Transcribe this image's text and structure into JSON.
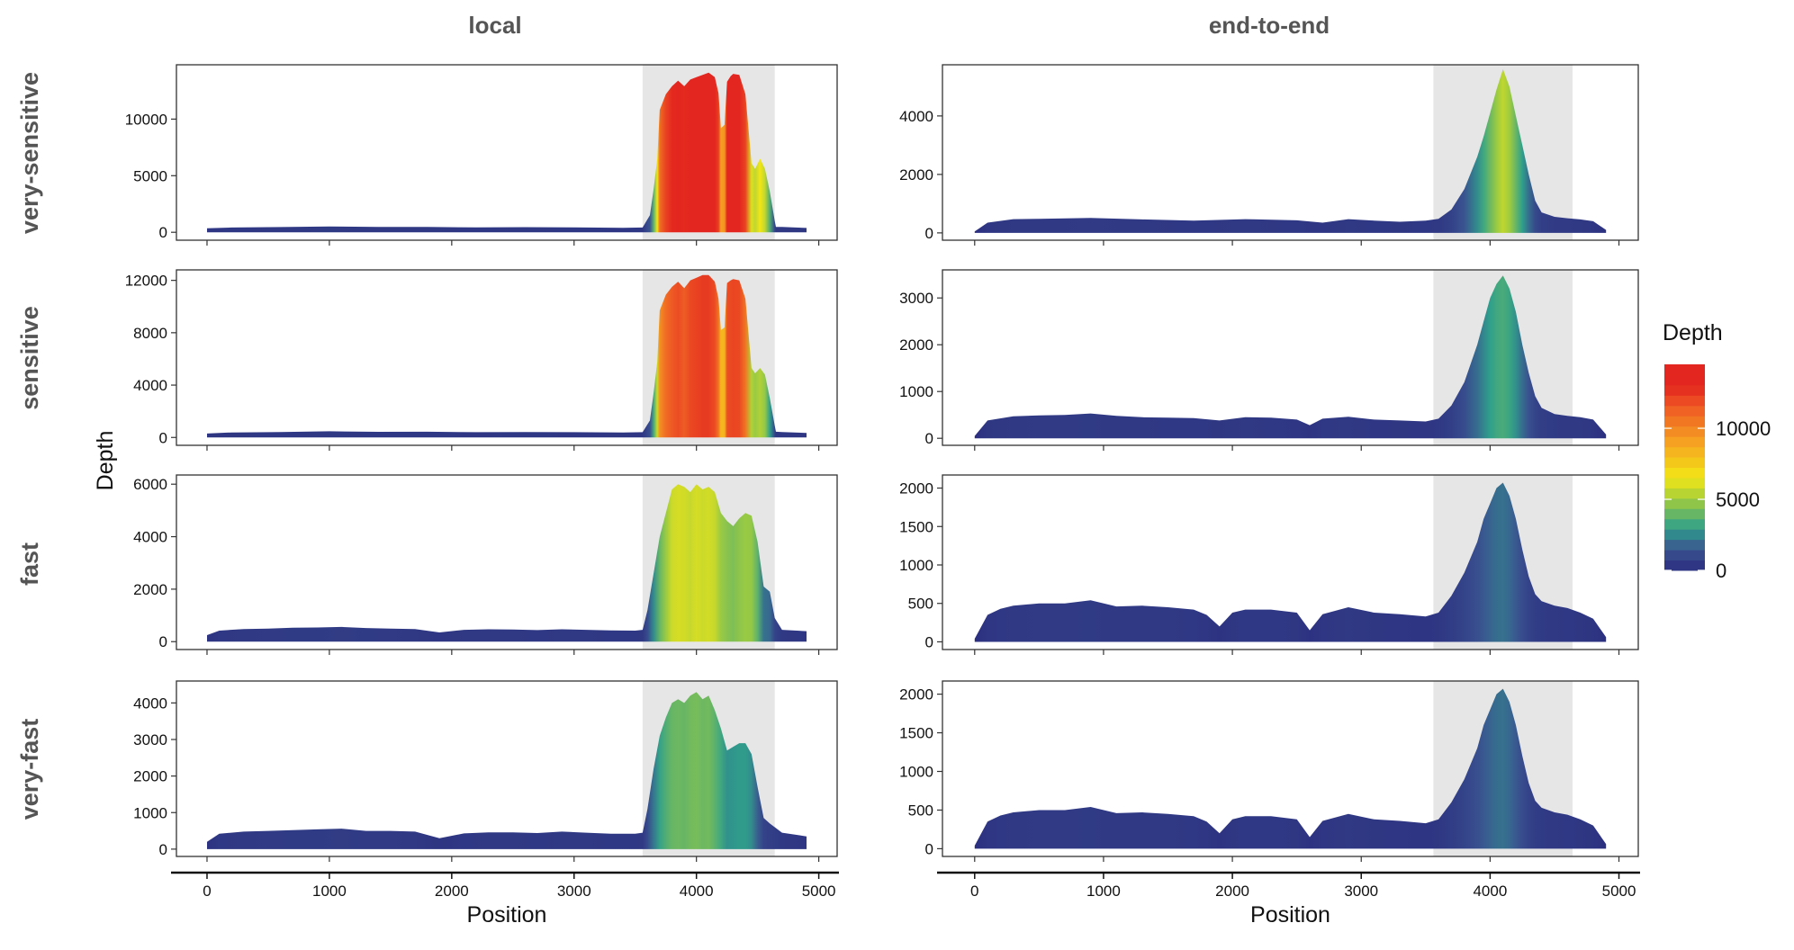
{
  "chart_data": {
    "type": "area",
    "columns": [
      "local",
      "end-to-end"
    ],
    "rows": [
      "very-sensitive",
      "sensitive",
      "fast",
      "very-fast"
    ],
    "xlabel": "Position",
    "ylabel": "Depth",
    "x_ticks": [
      0,
      1000,
      2000,
      3000,
      4000,
      5000
    ],
    "xlim": [
      -250,
      5150
    ],
    "highlight_region": [
      3560,
      4640
    ],
    "legend": {
      "title": "Depth",
      "labels": [
        {
          "value": 10000,
          "text": "10000"
        },
        {
          "value": 5000,
          "text": "5000"
        },
        {
          "value": 0,
          "text": "0"
        }
      ],
      "color_stops": [
        {
          "value": 0,
          "color": "#2b2d7f"
        },
        {
          "value": 1500,
          "color": "#3a5490"
        },
        {
          "value": 3000,
          "color": "#2fa08b"
        },
        {
          "value": 5000,
          "color": "#9fcc3f"
        },
        {
          "value": 6500,
          "color": "#f2e616"
        },
        {
          "value": 9000,
          "color": "#f6a322"
        },
        {
          "value": 11500,
          "color": "#ee5a24"
        },
        {
          "value": 13000,
          "color": "#e3261f"
        },
        {
          "value": 14500,
          "color": "#e3261f"
        }
      ]
    },
    "panels": [
      {
        "row": "very-sensitive",
        "col": "local",
        "ylim": [
          -700,
          14800
        ],
        "yticks": [
          0,
          5000,
          10000
        ],
        "x": [
          0,
          200,
          600,
          1000,
          1400,
          1800,
          2200,
          2600,
          3000,
          3400,
          3560,
          3620,
          3650,
          3680,
          3700,
          3750,
          3800,
          3850,
          3900,
          3950,
          4000,
          4050,
          4100,
          4150,
          4180,
          4200,
          4230,
          4250,
          4280,
          4300,
          4350,
          4400,
          4450,
          4480,
          4520,
          4560,
          4600,
          4640,
          4650,
          4700,
          4900
        ],
        "y": [
          350,
          420,
          460,
          520,
          470,
          480,
          430,
          450,
          430,
          400,
          420,
          1500,
          3800,
          6500,
          10800,
          12200,
          12900,
          13400,
          12900,
          13500,
          13700,
          13900,
          14100,
          13700,
          12300,
          9200,
          9500,
          13300,
          13800,
          14000,
          13900,
          12200,
          6100,
          5600,
          6500,
          5600,
          3600,
          1000,
          480,
          470,
          380
        ]
      },
      {
        "row": "very-sensitive",
        "col": "end-to-end",
        "ylim": [
          -250,
          5750
        ],
        "yticks": [
          0,
          2000,
          4000
        ],
        "x": [
          0,
          100,
          300,
          500,
          900,
          1300,
          1700,
          2100,
          2500,
          2700,
          2900,
          3100,
          3300,
          3500,
          3600,
          3700,
          3800,
          3900,
          3950,
          4000,
          4050,
          4100,
          4150,
          4200,
          4250,
          4300,
          4350,
          4400,
          4500,
          4600,
          4700,
          4800,
          4900
        ],
        "y": [
          50,
          350,
          470,
          480,
          510,
          460,
          420,
          470,
          430,
          350,
          470,
          420,
          380,
          420,
          480,
          800,
          1500,
          2600,
          3300,
          4100,
          4900,
          5600,
          5000,
          4000,
          3000,
          2000,
          1100,
          700,
          550,
          500,
          460,
          400,
          100
        ]
      },
      {
        "row": "sensitive",
        "col": "local",
        "ylim": [
          -600,
          12800
        ],
        "yticks": [
          0,
          4000,
          8000,
          12000
        ],
        "x": [
          0,
          200,
          600,
          1000,
          1400,
          1800,
          2200,
          2600,
          3000,
          3400,
          3560,
          3620,
          3650,
          3680,
          3700,
          3750,
          3800,
          3850,
          3900,
          3950,
          4000,
          4050,
          4100,
          4150,
          4180,
          4200,
          4230,
          4250,
          4280,
          4300,
          4350,
          4400,
          4450,
          4480,
          4520,
          4560,
          4600,
          4640,
          4650,
          4700,
          4900
        ],
        "y": [
          300,
          380,
          420,
          470,
          430,
          440,
          400,
          420,
          400,
          380,
          400,
          1300,
          3400,
          5800,
          9700,
          10900,
          11500,
          11900,
          11400,
          12000,
          12200,
          12400,
          12400,
          11900,
          10600,
          8200,
          8400,
          11800,
          12000,
          12100,
          12000,
          10600,
          5300,
          4900,
          5300,
          4800,
          3000,
          900,
          440,
          420,
          350
        ]
      },
      {
        "row": "sensitive",
        "col": "end-to-end",
        "ylim": [
          -150,
          3600
        ],
        "yticks": [
          0,
          1000,
          2000,
          3000
        ],
        "x": [
          0,
          100,
          300,
          500,
          700,
          900,
          1100,
          1300,
          1500,
          1700,
          1900,
          2100,
          2300,
          2500,
          2600,
          2700,
          2900,
          3100,
          3300,
          3500,
          3600,
          3700,
          3800,
          3900,
          3950,
          4000,
          4050,
          4100,
          4150,
          4200,
          4250,
          4300,
          4350,
          4400,
          4500,
          4600,
          4700,
          4800,
          4900
        ],
        "y": [
          50,
          380,
          470,
          490,
          500,
          530,
          480,
          450,
          440,
          430,
          380,
          450,
          440,
          400,
          280,
          420,
          460,
          400,
          380,
          360,
          420,
          700,
          1200,
          2000,
          2500,
          3000,
          3300,
          3480,
          3200,
          2700,
          2000,
          1400,
          900,
          650,
          520,
          480,
          450,
          400,
          80
        ]
      },
      {
        "row": "fast",
        "col": "local",
        "ylim": [
          -300,
          6350
        ],
        "yticks": [
          0,
          2000,
          4000,
          6000
        ],
        "x": [
          0,
          100,
          300,
          500,
          700,
          900,
          1100,
          1300,
          1500,
          1700,
          1900,
          2100,
          2300,
          2500,
          2700,
          2900,
          3100,
          3300,
          3500,
          3560,
          3600,
          3650,
          3700,
          3750,
          3800,
          3850,
          3900,
          3950,
          4000,
          4050,
          4100,
          4150,
          4200,
          4250,
          4300,
          4350,
          4400,
          4450,
          4500,
          4550,
          4600,
          4640,
          4700,
          4900
        ],
        "y": [
          250,
          420,
          480,
          500,
          530,
          540,
          560,
          520,
          500,
          480,
          350,
          450,
          470,
          460,
          440,
          470,
          450,
          430,
          420,
          450,
          1200,
          2600,
          4000,
          4900,
          5800,
          6000,
          5900,
          5700,
          6000,
          5800,
          5900,
          5700,
          4900,
          4600,
          4400,
          4700,
          4900,
          4800,
          3800,
          2100,
          1900,
          900,
          450,
          400
        ]
      },
      {
        "row": "fast",
        "col": "end-to-end",
        "ylim": [
          -100,
          2170
        ],
        "yticks": [
          0,
          500,
          1000,
          1500,
          2000
        ],
        "x": [
          0,
          100,
          200,
          300,
          500,
          700,
          900,
          1100,
          1300,
          1500,
          1700,
          1800,
          1900,
          2000,
          2100,
          2300,
          2500,
          2600,
          2700,
          2900,
          3100,
          3300,
          3500,
          3600,
          3700,
          3800,
          3900,
          3950,
          4000,
          4050,
          4100,
          4150,
          4200,
          4250,
          4300,
          4350,
          4400,
          4500,
          4600,
          4700,
          4800,
          4900
        ],
        "y": [
          40,
          350,
          430,
          470,
          500,
          500,
          540,
          460,
          470,
          450,
          420,
          350,
          200,
          380,
          420,
          420,
          380,
          150,
          360,
          450,
          380,
          360,
          330,
          380,
          600,
          900,
          1300,
          1600,
          1800,
          2000,
          2070,
          1900,
          1600,
          1200,
          850,
          620,
          530,
          470,
          440,
          380,
          300,
          60
        ]
      },
      {
        "row": "very-fast",
        "col": "local",
        "ylim": [
          -200,
          4600
        ],
        "yticks": [
          0,
          1000,
          2000,
          3000,
          4000
        ],
        "x": [
          0,
          100,
          300,
          500,
          700,
          900,
          1100,
          1300,
          1500,
          1700,
          1900,
          2100,
          2300,
          2500,
          2700,
          2900,
          3100,
          3300,
          3500,
          3560,
          3600,
          3650,
          3700,
          3750,
          3800,
          3850,
          3900,
          3950,
          4000,
          4050,
          4100,
          4150,
          4200,
          4250,
          4300,
          4350,
          4400,
          4450,
          4500,
          4550,
          4600,
          4640,
          4700,
          4900
        ],
        "y": [
          200,
          420,
          480,
          500,
          520,
          540,
          560,
          500,
          500,
          480,
          300,
          430,
          460,
          460,
          440,
          480,
          450,
          420,
          420,
          450,
          1100,
          2200,
          3100,
          3600,
          4000,
          4100,
          4000,
          4200,
          4300,
          4100,
          4200,
          3800,
          3300,
          2700,
          2800,
          2900,
          2900,
          2600,
          1700,
          850,
          700,
          600,
          450,
          350
        ]
      },
      {
        "row": "very-fast",
        "col": "end-to-end",
        "ylim": [
          -100,
          2170
        ],
        "yticks": [
          0,
          500,
          1000,
          1500,
          2000
        ],
        "x": [
          0,
          100,
          200,
          300,
          500,
          700,
          900,
          1100,
          1300,
          1500,
          1700,
          1800,
          1900,
          2000,
          2100,
          2300,
          2500,
          2600,
          2700,
          2900,
          3100,
          3300,
          3500,
          3600,
          3700,
          3800,
          3900,
          3950,
          4000,
          4050,
          4100,
          4150,
          4200,
          4250,
          4300,
          4350,
          4400,
          4500,
          4600,
          4700,
          4800,
          4900
        ],
        "y": [
          40,
          350,
          430,
          470,
          500,
          500,
          540,
          460,
          470,
          450,
          420,
          350,
          200,
          380,
          420,
          420,
          380,
          150,
          360,
          450,
          380,
          360,
          330,
          380,
          600,
          900,
          1300,
          1600,
          1800,
          2000,
          2070,
          1900,
          1600,
          1200,
          850,
          620,
          530,
          470,
          440,
          380,
          300,
          60
        ]
      }
    ]
  }
}
